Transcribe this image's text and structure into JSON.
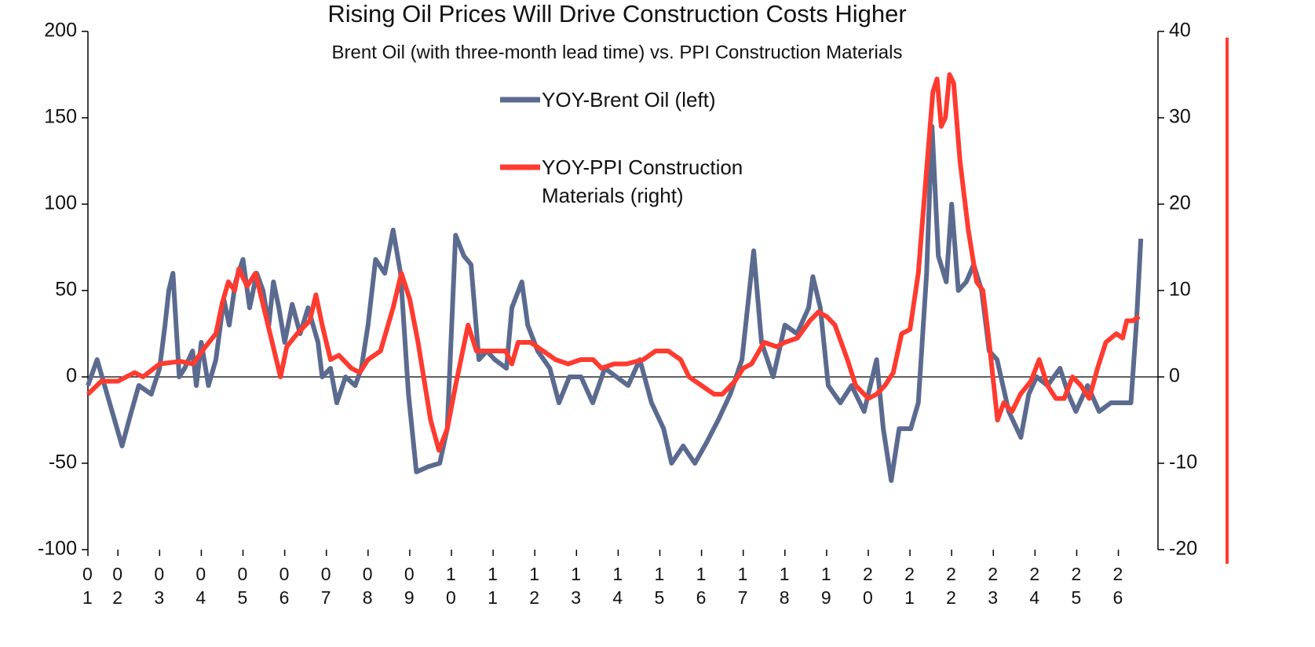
{
  "chart_data": {
    "type": "line",
    "title": "Rising Oil Prices Will Drive Construction Costs Higher",
    "subtitle": "Brent Oil (with three-month lead time) vs. PPI Construction Materials",
    "xlim": [
      1.28,
      26.95
    ],
    "xticks": [
      {
        "value": 1.28,
        "label": "01"
      },
      {
        "value": 2,
        "label": "02"
      },
      {
        "value": 3,
        "label": "03"
      },
      {
        "value": 4,
        "label": "04"
      },
      {
        "value": 5,
        "label": "05"
      },
      {
        "value": 6,
        "label": "06"
      },
      {
        "value": 7,
        "label": "07"
      },
      {
        "value": 8,
        "label": "08"
      },
      {
        "value": 9,
        "label": "09"
      },
      {
        "value": 10,
        "label": "10"
      },
      {
        "value": 11,
        "label": "11"
      },
      {
        "value": 12,
        "label": "12"
      },
      {
        "value": 13,
        "label": "13"
      },
      {
        "value": 14,
        "label": "14"
      },
      {
        "value": 15,
        "label": "15"
      },
      {
        "value": 16,
        "label": "16"
      },
      {
        "value": 17,
        "label": "17"
      },
      {
        "value": 18,
        "label": "18"
      },
      {
        "value": 19,
        "label": "19"
      },
      {
        "value": 20,
        "label": "20"
      },
      {
        "value": 21,
        "label": "21"
      },
      {
        "value": 22,
        "label": "22"
      },
      {
        "value": 23,
        "label": "23"
      },
      {
        "value": 24,
        "label": "24"
      },
      {
        "value": 25,
        "label": "25"
      },
      {
        "value": 26,
        "label": "26"
      }
    ],
    "ylim": [
      -100,
      200
    ],
    "yticks": [
      -100,
      -50,
      0,
      50,
      100,
      150,
      200
    ],
    "y2lim": [
      -20,
      40
    ],
    "y2ticks": [
      -20,
      -10,
      0,
      10,
      20,
      30,
      40
    ],
    "series": [
      {
        "name": "YOY-Brent Oil (left)",
        "color": "#5b6a8f",
        "axis": "y",
        "x": [
          1.28,
          1.5,
          1.8,
          2.1,
          2.3,
          2.5,
          2.8,
          3.0,
          3.13,
          3.22,
          3.32,
          3.47,
          3.6,
          3.79,
          3.88,
          4.0,
          4.17,
          4.35,
          4.54,
          4.67,
          4.82,
          5.0,
          5.16,
          5.33,
          5.48,
          5.62,
          5.73,
          5.86,
          6.0,
          6.18,
          6.37,
          6.56,
          6.8,
          6.9,
          7.1,
          7.25,
          7.46,
          7.69,
          7.84,
          8.0,
          8.18,
          8.4,
          8.6,
          8.78,
          8.97,
          9.16,
          9.44,
          9.72,
          9.9,
          10.1,
          10.3,
          10.47,
          10.66,
          10.85,
          11.04,
          11.32,
          11.45,
          11.69,
          11.83,
          12.07,
          12.36,
          12.58,
          12.83,
          13.11,
          13.39,
          13.68,
          13.96,
          14.24,
          14.52,
          14.8,
          15.09,
          15.28,
          15.56,
          15.84,
          16.12,
          16.4,
          16.69,
          16.97,
          17.25,
          17.44,
          17.72,
          18.0,
          18.29,
          18.57,
          18.67,
          18.85,
          19.04,
          19.33,
          19.6,
          19.9,
          20.2,
          20.36,
          20.55,
          20.74,
          21.02,
          21.2,
          21.4,
          21.53,
          21.68,
          21.87,
          22.0,
          22.16,
          22.35,
          22.53,
          22.72,
          22.9,
          23.09,
          23.37,
          23.66,
          23.85,
          24.04,
          24.3,
          24.6,
          24.8,
          24.98,
          25.26,
          25.54,
          25.82,
          26.1,
          26.3,
          26.43,
          26.54
        ],
        "values": [
          -5,
          10,
          -15,
          -40,
          -22,
          -5,
          -10,
          5,
          30,
          50,
          60,
          0,
          5,
          15,
          -5,
          20,
          -5,
          10,
          45,
          30,
          55,
          68,
          40,
          60,
          50,
          30,
          55,
          40,
          20,
          42,
          25,
          40,
          20,
          0,
          5,
          -15,
          0,
          -5,
          5,
          30,
          68,
          60,
          85,
          60,
          -10,
          -55,
          -52,
          -50,
          -30,
          82,
          70,
          65,
          10,
          15,
          10,
          5,
          40,
          55,
          30,
          15,
          5,
          -15,
          0,
          0,
          -15,
          5,
          0,
          -5,
          10,
          -15,
          -30,
          -50,
          -40,
          -50,
          -38,
          -25,
          -10,
          10,
          73,
          20,
          0,
          30,
          25,
          40,
          58,
          40,
          -5,
          -15,
          -5,
          -20,
          10,
          -30,
          -60,
          -30,
          -30,
          -15,
          60,
          145,
          70,
          55,
          100,
          50,
          55,
          65,
          50,
          15,
          10,
          -20,
          -35,
          -10,
          0,
          -5,
          5,
          -10,
          -20,
          -5,
          -20,
          -15,
          -15,
          -15,
          30,
          80
        ]
      },
      {
        "name": "YOY-PPI Construction Materials (right)",
        "color": "#ff3b30",
        "axis": "y2",
        "x": [
          1.28,
          1.6,
          2.0,
          2.4,
          2.6,
          3.0,
          3.5,
          3.8,
          4.1,
          4.35,
          4.5,
          4.65,
          4.8,
          4.9,
          5.1,
          5.3,
          5.5,
          5.75,
          5.9,
          6.05,
          6.3,
          6.6,
          6.75,
          6.9,
          7.1,
          7.3,
          7.6,
          7.8,
          8.0,
          8.3,
          8.6,
          8.8,
          9.0,
          9.2,
          9.5,
          9.7,
          9.9,
          10.1,
          10.4,
          10.6,
          11.0,
          11.3,
          11.45,
          11.6,
          11.9,
          12.2,
          12.5,
          12.8,
          13.1,
          13.4,
          13.6,
          13.9,
          14.2,
          14.6,
          14.9,
          15.2,
          15.5,
          15.7,
          16.0,
          16.3,
          16.5,
          16.8,
          17.0,
          17.2,
          17.5,
          17.8,
          18.0,
          18.3,
          18.6,
          18.8,
          19.0,
          19.2,
          19.5,
          19.7,
          20.0,
          20.2,
          20.4,
          20.6,
          20.8,
          21.0,
          21.2,
          21.4,
          21.55,
          21.65,
          21.75,
          21.85,
          21.95,
          22.05,
          22.2,
          22.4,
          22.6,
          22.75,
          22.9,
          23.1,
          23.25,
          23.45,
          23.65,
          23.9,
          24.1,
          24.3,
          24.5,
          24.7,
          24.9,
          25.1,
          25.3,
          25.5,
          25.7,
          25.95,
          26.1,
          26.2,
          26.35,
          26.5
        ],
        "values": [
          -2,
          -0.5,
          -0.5,
          0.5,
          0,
          1.5,
          1.8,
          1.5,
          3.5,
          5,
          8.5,
          11,
          10,
          12.5,
          10.5,
          12,
          8,
          3,
          0,
          3.5,
          5,
          6.5,
          9.5,
          6,
          2,
          2.5,
          1,
          0.5,
          2,
          3,
          8,
          12,
          9,
          4,
          -5,
          -8.5,
          -6,
          -1,
          6,
          3,
          3,
          3,
          1.5,
          4,
          4,
          3,
          2,
          1.5,
          2,
          2,
          1,
          1.5,
          1.5,
          2,
          3,
          3,
          2,
          0,
          -1,
          -2,
          -2,
          -0.5,
          1,
          1.5,
          4,
          3.5,
          4,
          4.5,
          6.5,
          7.5,
          7,
          6,
          2,
          -1,
          -2.5,
          -2,
          -1,
          0.5,
          5,
          5.5,
          12,
          24,
          33,
          34.5,
          29,
          30,
          35,
          34,
          25,
          17,
          11,
          10,
          4,
          -5,
          -3,
          -4,
          -2,
          -0.5,
          2,
          -1,
          -2.5,
          -2.5,
          0,
          -1,
          -2.5,
          1,
          4,
          5,
          4.5,
          6.5,
          6.5,
          7
        ]
      }
    ]
  }
}
